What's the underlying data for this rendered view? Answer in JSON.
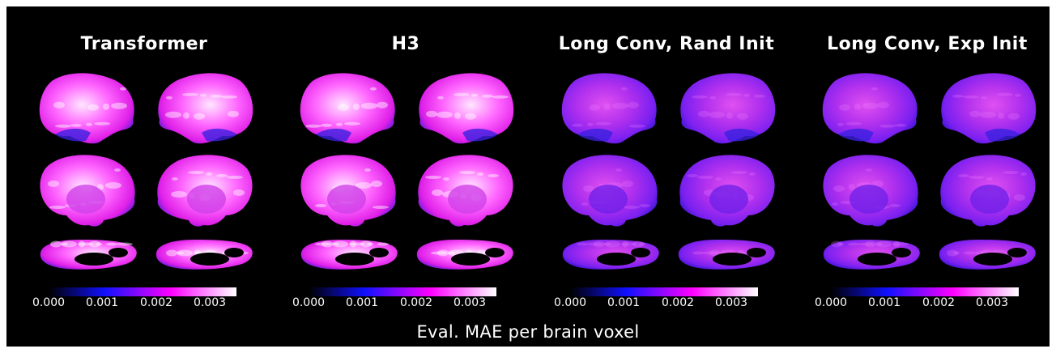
{
  "figure": {
    "panels": [
      {
        "title": "Transformer",
        "intensity": 1.0
      },
      {
        "title": "H3",
        "intensity": 0.97
      },
      {
        "title": "Long Conv, Rand Init",
        "intensity": 0.55
      },
      {
        "title": "Long Conv, Exp Init",
        "intensity": 0.58
      }
    ],
    "views": [
      "lateral-left",
      "lateral-right",
      "medial-left",
      "medial-right",
      "ventral-left",
      "ventral-right"
    ],
    "colorbar": {
      "ticks": [
        "0.000",
        "0.001",
        "0.002",
        "0.003"
      ],
      "tick_values": [
        0,
        0.001,
        0.002,
        0.003
      ],
      "range": [
        0,
        0.0035
      ],
      "colors": [
        "#000000",
        "#1010ff",
        "#ff00ff",
        "#ffffff"
      ]
    },
    "caption": "Eval. MAE per brain voxel"
  }
}
